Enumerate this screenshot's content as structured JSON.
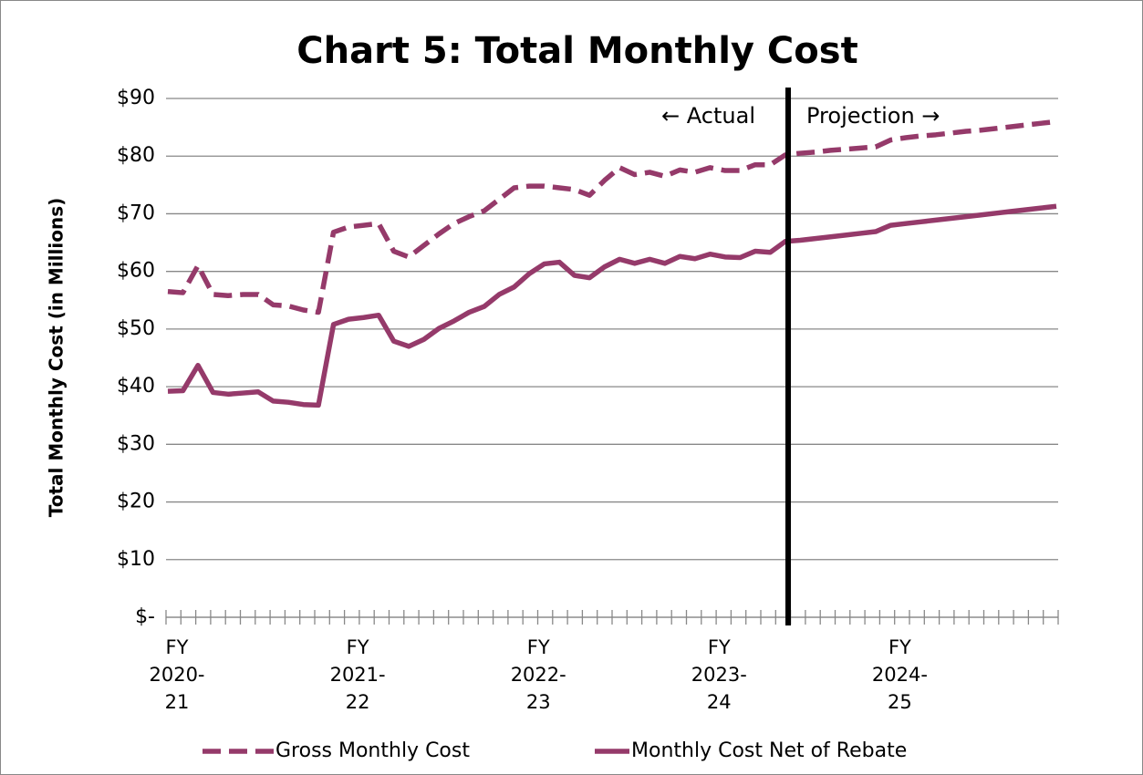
{
  "chart_data": {
    "type": "line",
    "title": "Chart 5: Total Monthly Cost",
    "y_label": "Total Monthly Cost (in Millions)",
    "annotations": [
      "← Actual",
      "Projection →"
    ],
    "categories": [
      "FY 2020-21",
      null,
      null,
      null,
      null,
      null,
      null,
      null,
      null,
      null,
      null,
      null,
      "FY 2021-22",
      null,
      null,
      null,
      null,
      null,
      null,
      null,
      null,
      null,
      null,
      null,
      "FY 2022-23",
      null,
      null,
      null,
      null,
      null,
      null,
      null,
      null,
      null,
      null,
      null,
      "FY 2023-24",
      null,
      null,
      null,
      null,
      null,
      null,
      null,
      null,
      null,
      null,
      null,
      "FY 2024-25",
      null,
      null,
      null,
      null,
      null,
      null,
      null,
      null,
      null,
      null,
      null
    ],
    "series": [
      {
        "name": "Gross Monthly Cost",
        "color": "#953a6a",
        "dashed": true,
        "values": [
          56.5,
          56.3,
          61,
          56,
          55.8,
          56,
          56,
          54.2,
          54,
          53.3,
          52.9,
          66.8,
          67.7,
          68,
          68.3,
          63.5,
          62.5,
          64.5,
          66.5,
          68.3,
          69.5,
          70.5,
          72.5,
          74.5,
          74.8,
          74.8,
          74.5,
          74.2,
          73.2,
          75.8,
          78,
          76.8,
          77.2,
          76.5,
          77.6,
          77.2,
          78,
          77.5,
          77.5,
          78.5,
          78.5,
          80.2,
          80.5,
          80.7,
          81,
          81.2,
          81.4,
          81.6,
          82.8,
          83.2,
          83.5,
          83.7,
          84,
          84.3,
          84.5,
          84.8,
          85.1,
          85.4,
          85.7,
          86
        ]
      },
      {
        "name": "Monthly Cost Net of Rebate",
        "color": "#953a6a",
        "dashed": false,
        "values": [
          39.2,
          39.3,
          43.7,
          39,
          38.7,
          38.9,
          39.1,
          37.5,
          37.3,
          36.9,
          36.8,
          50.8,
          51.7,
          52,
          52.4,
          47.9,
          47,
          48.2,
          50.1,
          51.4,
          52.9,
          53.9,
          56,
          57.3,
          59.6,
          61.3,
          61.6,
          59.3,
          58.9,
          60.8,
          62.1,
          61.4,
          62.1,
          61.4,
          62.6,
          62.2,
          63,
          62.5,
          62.4,
          63.5,
          63.3,
          65.2,
          65.4,
          65.7,
          66,
          66.3,
          66.6,
          66.9,
          68,
          68.3,
          68.6,
          68.9,
          69.2,
          69.5,
          69.8,
          70.1,
          70.4,
          70.7,
          71,
          71.3
        ]
      }
    ],
    "ylim": [
      0,
      90
    ],
    "yticks": [
      {
        "value": 0,
        "label": "$-"
      },
      {
        "value": 10,
        "label": "$10"
      },
      {
        "value": 20,
        "label": "$20"
      },
      {
        "value": 30,
        "label": "$30"
      },
      {
        "value": 40,
        "label": "$40"
      },
      {
        "value": 50,
        "label": "$50"
      },
      {
        "value": 60,
        "label": "$60"
      },
      {
        "value": 70,
        "label": "$70"
      },
      {
        "value": 80,
        "label": "$80"
      },
      {
        "value": 90,
        "label": "$90"
      }
    ],
    "grid": true,
    "legend": "bottom"
  }
}
